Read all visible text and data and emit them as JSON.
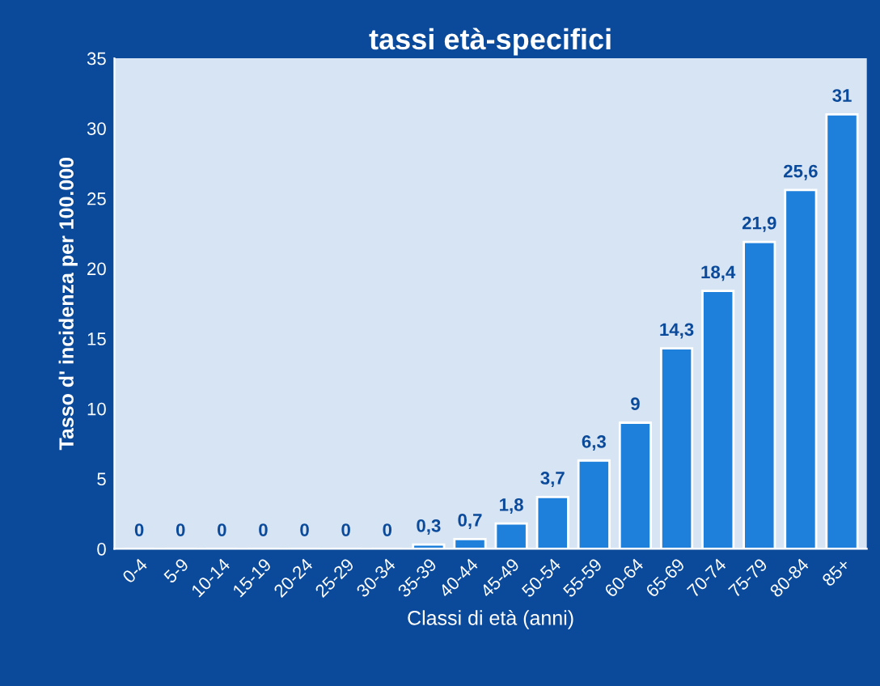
{
  "chart_data": {
    "type": "bar",
    "title": "tassi età-specifici",
    "xlabel": "Classi di età (anni)",
    "ylabel": "Tasso d' incidenza per 100.000",
    "categories": [
      "0-4",
      "5-9",
      "10-14",
      "15-19",
      "20-24",
      "25-29",
      "30-34",
      "35-39",
      "40-44",
      "45-49",
      "50-54",
      "55-59",
      "60-64",
      "65-69",
      "70-74",
      "75-79",
      "80-84",
      "85+"
    ],
    "values": [
      0,
      0,
      0,
      0,
      0,
      0,
      0,
      0.3,
      0.7,
      1.8,
      3.7,
      6.3,
      9,
      14.3,
      18.4,
      21.9,
      25.6,
      31
    ],
    "value_labels": [
      "0",
      "0",
      "0",
      "0",
      "0",
      "0",
      "0",
      "0,3",
      "0,7",
      "1,8",
      "3,7",
      "6,3",
      "9",
      "14,3",
      "18,4",
      "21,9",
      "25,6",
      "31"
    ],
    "color": "#1f80dc",
    "ylim": [
      0,
      35
    ],
    "yticks": [
      0,
      5,
      10,
      15,
      20,
      25,
      30,
      35
    ],
    "grid": false,
    "legend": false
  }
}
